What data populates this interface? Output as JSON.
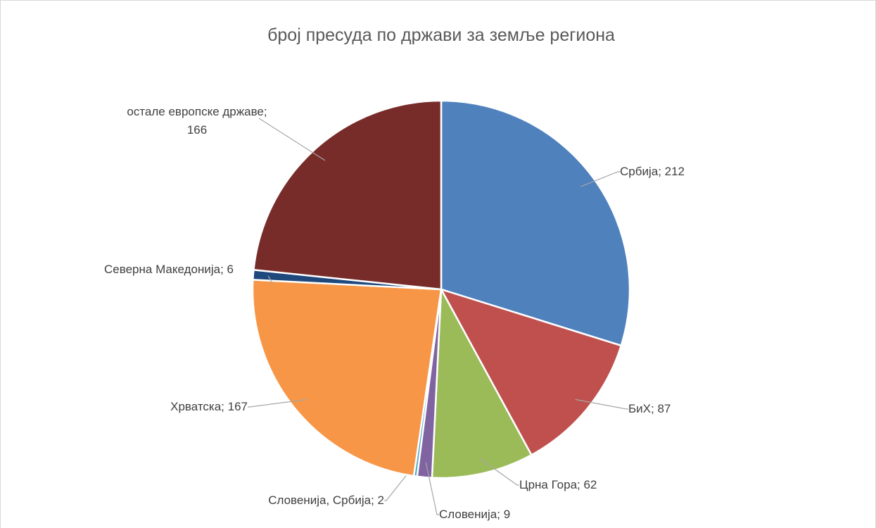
{
  "chart_data": {
    "type": "pie",
    "title": "број пресуда по држави за земље региона",
    "values": [
      212,
      87,
      62,
      9,
      2,
      167,
      6,
      166
    ],
    "value_labels": [
      "Србија; 212",
      "БиХ; 87",
      "Црна Гора; 62",
      "Словенија; 9",
      "Словенија, Србија; 2",
      "Хрватска; 167",
      "Северна Македонија; 6",
      "остале европске државе; 166"
    ],
    "colors": [
      "#4f81bd",
      "#c0504d",
      "#9bbb59",
      "#8064a2",
      "#4bacc6",
      "#f79646",
      "#1f497d",
      "#772c2a"
    ]
  }
}
